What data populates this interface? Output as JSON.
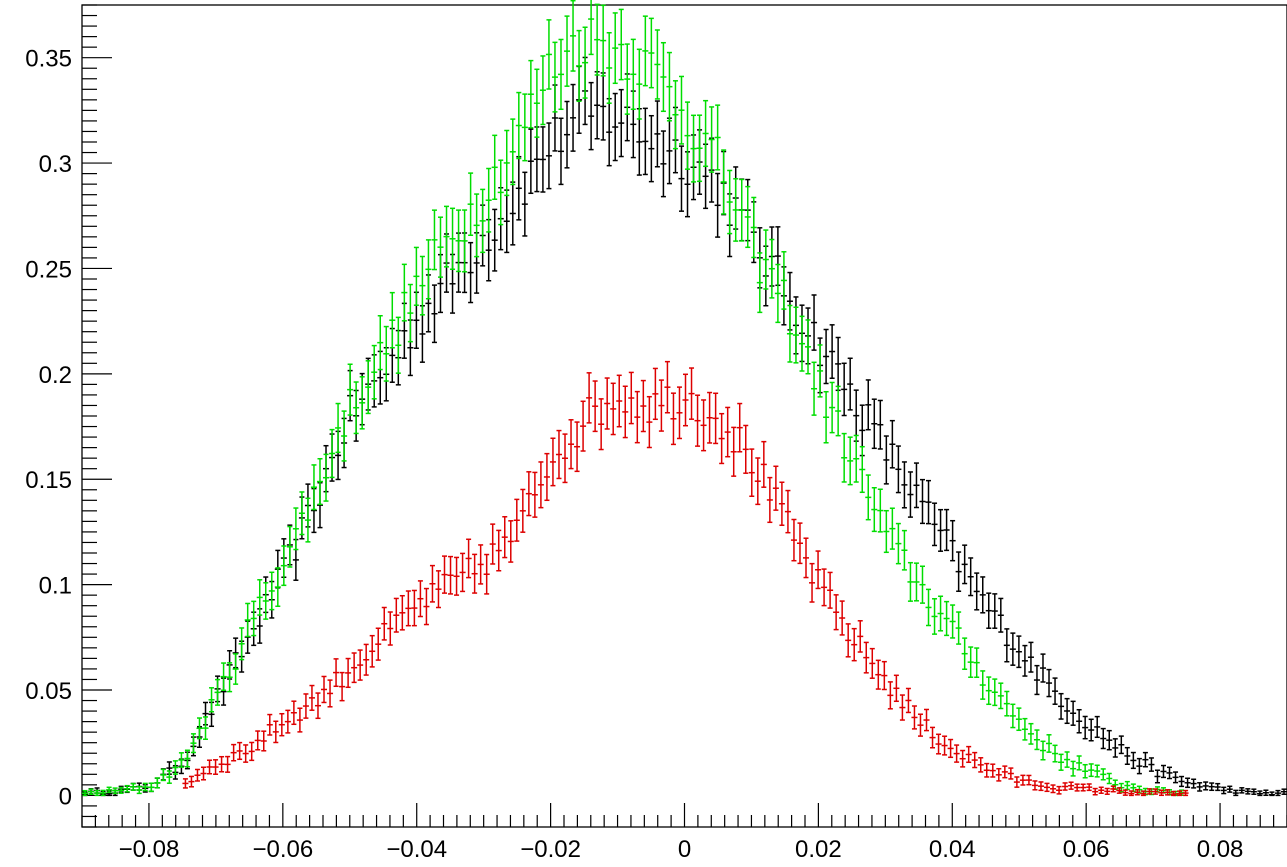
{
  "chart_data": {
    "type": "scatter",
    "title": "",
    "xlabel": "",
    "ylabel": "",
    "xlim": [
      -0.09,
      0.09
    ],
    "ylim": [
      -0.015,
      0.375
    ],
    "grid": false,
    "legend": "none",
    "x_ticks": [
      -0.08,
      -0.06,
      -0.04,
      -0.02,
      0,
      0.02,
      0.04,
      0.06,
      0.08
    ],
    "x_tick_labels": [
      "−0.08",
      "−0.06",
      "−0.04",
      "−0.02",
      "0",
      "0.02",
      "0.04",
      "0.06",
      "0.08"
    ],
    "y_ticks": [
      0,
      0.05,
      0.1,
      0.15,
      0.2,
      0.25,
      0.3,
      0.35
    ],
    "y_tick_labels": [
      "0",
      "0.05",
      "0.1",
      "0.15",
      "0.2",
      "0.25",
      "0.3",
      "0.35"
    ],
    "bin_width": 0.0009,
    "series": [
      {
        "color": "#000000",
        "x": [
          -0.09,
          -0.085,
          -0.08,
          -0.075,
          -0.07,
          -0.065,
          -0.06,
          -0.055,
          -0.05,
          -0.045,
          -0.04,
          -0.035,
          -0.03,
          -0.025,
          -0.02,
          -0.015,
          -0.01,
          -0.005,
          0,
          0.005,
          0.01,
          0.015,
          0.02,
          0.025,
          0.03,
          0.035,
          0.04,
          0.045,
          0.05,
          0.055,
          0.06,
          0.065,
          0.07,
          0.075,
          0.08,
          0.085,
          0.09
        ],
        "y": [
          0.001,
          0.002,
          0.004,
          0.015,
          0.045,
          0.075,
          0.105,
          0.14,
          0.18,
          0.2,
          0.225,
          0.245,
          0.265,
          0.285,
          0.31,
          0.322,
          0.322,
          0.312,
          0.303,
          0.29,
          0.265,
          0.24,
          0.215,
          0.19,
          0.165,
          0.14,
          0.115,
          0.09,
          0.07,
          0.05,
          0.035,
          0.022,
          0.012,
          0.006,
          0.003,
          0.001,
          0.001
        ]
      },
      {
        "color": "#00dd00",
        "x": [
          -0.09,
          -0.085,
          -0.08,
          -0.075,
          -0.07,
          -0.065,
          -0.06,
          -0.055,
          -0.05,
          -0.045,
          -0.04,
          -0.035,
          -0.03,
          -0.025,
          -0.02,
          -0.015,
          -0.01,
          -0.005,
          0,
          0.005,
          0.01,
          0.015,
          0.02,
          0.025,
          0.03,
          0.035,
          0.04,
          0.045,
          0.05,
          0.055,
          0.06,
          0.065,
          0.07,
          0.075
        ],
        "y": [
          0.001,
          0.002,
          0.004,
          0.015,
          0.045,
          0.08,
          0.11,
          0.145,
          0.185,
          0.21,
          0.24,
          0.265,
          0.285,
          0.31,
          0.345,
          0.36,
          0.355,
          0.345,
          0.325,
          0.3,
          0.26,
          0.235,
          0.195,
          0.16,
          0.125,
          0.1,
          0.078,
          0.055,
          0.035,
          0.02,
          0.012,
          0.005,
          0.002,
          0.001
        ]
      },
      {
        "color": "#dd0000",
        "x": [
          -0.075,
          -0.07,
          -0.065,
          -0.06,
          -0.055,
          -0.05,
          -0.045,
          -0.04,
          -0.035,
          -0.03,
          -0.025,
          -0.02,
          -0.015,
          -0.01,
          -0.005,
          0,
          0.005,
          0.01,
          0.015,
          0.02,
          0.025,
          0.03,
          0.035,
          0.04,
          0.045,
          0.05,
          0.055,
          0.06,
          0.065,
          0.07,
          0.075
        ],
        "y": [
          0.005,
          0.015,
          0.022,
          0.035,
          0.045,
          0.06,
          0.075,
          0.09,
          0.1,
          0.11,
          0.125,
          0.16,
          0.178,
          0.19,
          0.185,
          0.19,
          0.18,
          0.16,
          0.13,
          0.1,
          0.075,
          0.055,
          0.035,
          0.022,
          0.013,
          0.007,
          0.004,
          0.003,
          0.002,
          0.001,
          0.001
        ]
      }
    ]
  }
}
